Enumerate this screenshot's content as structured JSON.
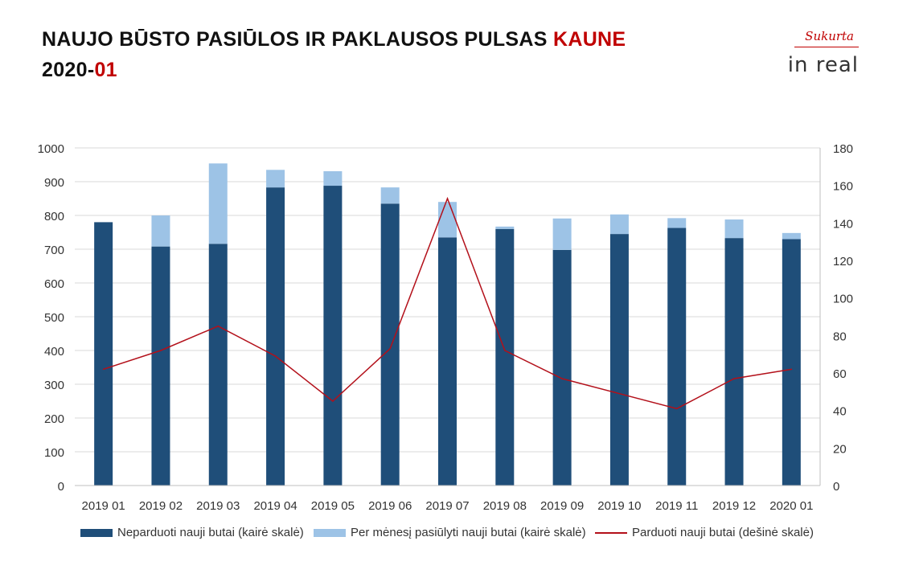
{
  "header": {
    "title_line1_main": "NAUJO BŪSTO PASIŪLOS IR PAKLAUSOS PULSAS ",
    "title_line1_accent": "KAUNE",
    "title_line2_main": "2020-",
    "title_line2_accent": "01"
  },
  "logo": {
    "sukurta": "Sukurta",
    "inreal": "in real"
  },
  "colors": {
    "dark_blue": "#1f4e79",
    "light_blue": "#9dc3e6",
    "line_red": "#b3101a",
    "accent_red": "#c00000"
  },
  "chart_data": {
    "type": "bar",
    "stacked": true,
    "categories": [
      "2019 01",
      "2019 02",
      "2019 03",
      "2019 04",
      "2019 05",
      "2019 06",
      "2019 07",
      "2019 08",
      "2019 09",
      "2019 10",
      "2019 11",
      "2019 12",
      "2020 01"
    ],
    "series": [
      {
        "name": "Neparduoti nauji butai (kairė skalė)",
        "kind": "bar",
        "axis": "left",
        "color": "#1f4e79",
        "values": [
          780,
          708,
          716,
          883,
          888,
          835,
          735,
          760,
          698,
          745,
          763,
          733,
          730
        ]
      },
      {
        "name": "Per mėnesį pasiūlyti nauji butai (kairė skalė)",
        "kind": "bar",
        "axis": "left",
        "color": "#9dc3e6",
        "values": [
          0,
          92,
          238,
          52,
          43,
          48,
          105,
          7,
          93,
          58,
          29,
          55,
          18
        ]
      },
      {
        "name": "Parduoti nauji butai (dešinė skalė)",
        "kind": "line",
        "axis": "right",
        "color": "#b3101a",
        "values": [
          62,
          72,
          85,
          69,
          45,
          73,
          153,
          72,
          57,
          49,
          41,
          57,
          62
        ]
      }
    ],
    "y_left": {
      "min": 0,
      "max": 1000,
      "step": 100,
      "ticks": [
        "0",
        "100",
        "200",
        "300",
        "400",
        "500",
        "600",
        "700",
        "800",
        "900",
        "1000"
      ]
    },
    "y_right": {
      "min": 0,
      "max": 180,
      "step": 20,
      "ticks": [
        "0",
        "20",
        "40",
        "60",
        "80",
        "100",
        "120",
        "140",
        "160",
        "180"
      ]
    },
    "grid": true,
    "legend_position": "bottom"
  }
}
